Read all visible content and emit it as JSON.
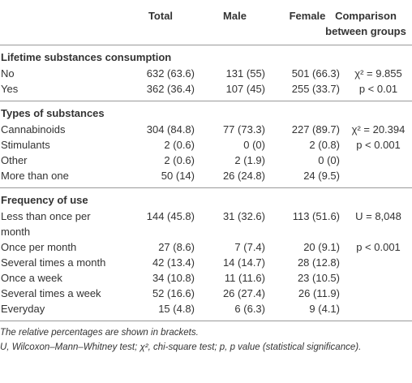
{
  "header": {
    "columns": [
      "Total",
      "Male",
      "Female",
      "Comparison between groups"
    ]
  },
  "sections": [
    {
      "title": "Lifetime substances consumption",
      "rows": [
        {
          "label": "No",
          "total": "632 (63.6)",
          "male": "131 (55)",
          "female": "501 (66.3)",
          "comparison": "χ² = 9.855"
        },
        {
          "label": "Yes",
          "total": "362 (36.4)",
          "male": "107 (45)",
          "female": "255 (33.7)",
          "comparison": "p < 0.01"
        }
      ]
    },
    {
      "title": "Types of substances",
      "rows": [
        {
          "label": "Cannabinoids",
          "total": "304 (84.8)",
          "male": "77 (73.3)",
          "female": "227 (89.7)",
          "comparison": "χ² = 20.394"
        },
        {
          "label": "Stimulants",
          "total": "2 (0.6)",
          "male": "0 (0)",
          "female": "2 (0.8)",
          "comparison": "p < 0.001"
        },
        {
          "label": "Other",
          "total": "2 (0.6)",
          "male": "2 (1.9)",
          "female": "0 (0)"
        },
        {
          "label": "More than one",
          "total": "50 (14)",
          "male": "26 (24.8)",
          "female": "24 (9.5)"
        }
      ]
    },
    {
      "title": "Frequency of use",
      "rows": [
        {
          "label": "Less than once per month",
          "total": "144 (45.8)",
          "male": "31 (32.6)",
          "female": "113 (51.6)",
          "comparison": "U = 8,048"
        },
        {
          "label": "Once per month",
          "total": "27 (8.6)",
          "male": "7 (7.4)",
          "female": "20 (9.1)",
          "comparison": "p < 0.001"
        },
        {
          "label": "Several times a month",
          "total": "42 (13.4)",
          "male": "14 (14.7)",
          "female": "28 (12.8)"
        },
        {
          "label": "Once a week",
          "total": "34 (10.8)",
          "male": "11 (11.6)",
          "female": "23 (10.5)"
        },
        {
          "label": "Several times a week",
          "total": "52 (16.6)",
          "male": "26 (27.4)",
          "female": "26 (11.9)"
        },
        {
          "label": "Everyday",
          "total": "15 (4.8)",
          "male": "6 (6.3)",
          "female": "9 (4.1)"
        }
      ]
    }
  ],
  "footnotes": [
    "The relative percentages are shown in brackets.",
    "U, Wilcoxon–Mann–Whitney test; χ², chi-square test; p, p value (statistical significance)."
  ]
}
